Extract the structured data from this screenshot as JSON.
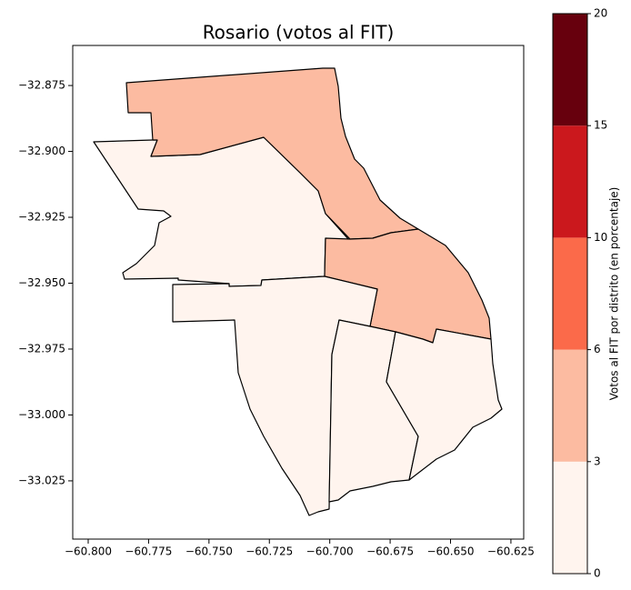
{
  "chart_data": {
    "type": "choropleth",
    "title": "Rosario (votos al FIT)",
    "values": [
      1.5,
      4.5,
      4.5,
      1.5,
      1.5,
      1.5
    ],
    "xlim": [
      -60.8064,
      -60.6197
    ],
    "ylim": [
      -33.0471,
      -32.8598
    ],
    "xticks": [
      {
        "value": -60.8,
        "label": "−60.800"
      },
      {
        "value": -60.775,
        "label": "−60.775"
      },
      {
        "value": -60.75,
        "label": "−60.750"
      },
      {
        "value": -60.725,
        "label": "−60.725"
      },
      {
        "value": -60.7,
        "label": "−60.700"
      },
      {
        "value": -60.675,
        "label": "−60.675"
      },
      {
        "value": -60.65,
        "label": "−60.650"
      },
      {
        "value": -60.625,
        "label": "−60.625"
      }
    ],
    "yticks": [
      {
        "value": -32.875,
        "label": "−32.875"
      },
      {
        "value": -32.9,
        "label": "−32.900"
      },
      {
        "value": -32.925,
        "label": "−32.925"
      },
      {
        "value": -32.95,
        "label": "−32.950"
      },
      {
        "value": -32.975,
        "label": "−32.975"
      },
      {
        "value": -33.0,
        "label": "−33.000"
      },
      {
        "value": -33.025,
        "label": "−33.025"
      }
    ],
    "colorbar": {
      "label": "Votos al FIT por distrito (en porcentaje)",
      "bounds": [
        0,
        3,
        6,
        10,
        15,
        20
      ],
      "colors": [
        "#fff4ee",
        "#fcbba1",
        "#fb6a4a",
        "#cb181d",
        "#67000d"
      ]
    }
  }
}
